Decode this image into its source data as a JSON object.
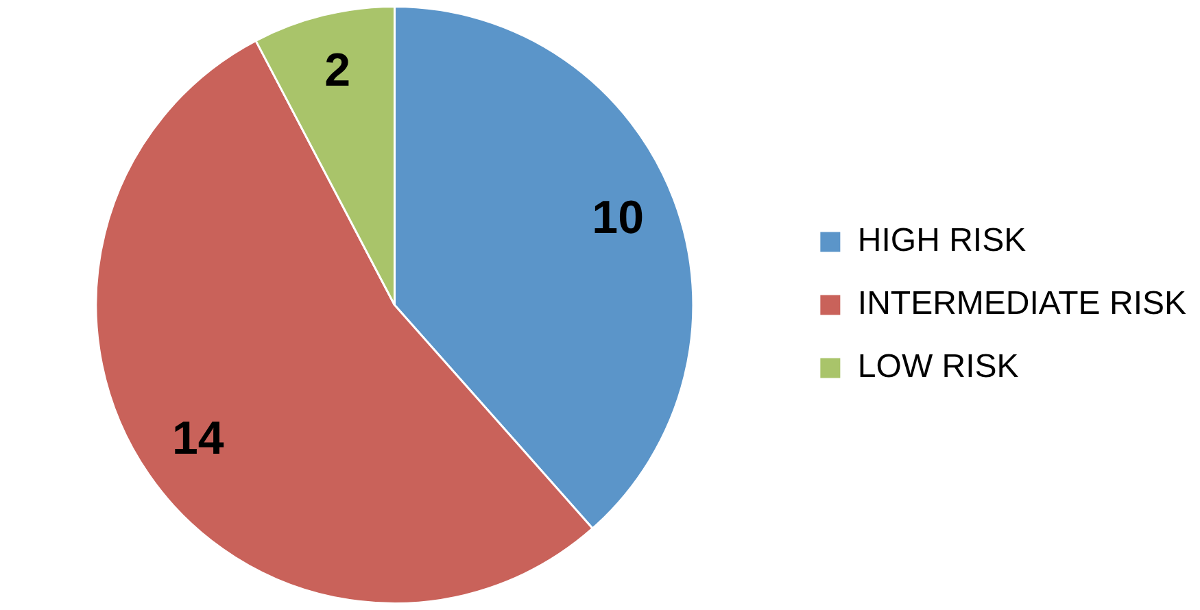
{
  "chart_data": {
    "type": "pie",
    "categories": [
      "HIGH RISK",
      "INTERMEDIATE RISK",
      "LOW RISK"
    ],
    "values": [
      10,
      14,
      2
    ],
    "colors": [
      "#5b95c9",
      "#c9625a",
      "#a9c46a"
    ],
    "data_labels": true,
    "legend": "right"
  }
}
